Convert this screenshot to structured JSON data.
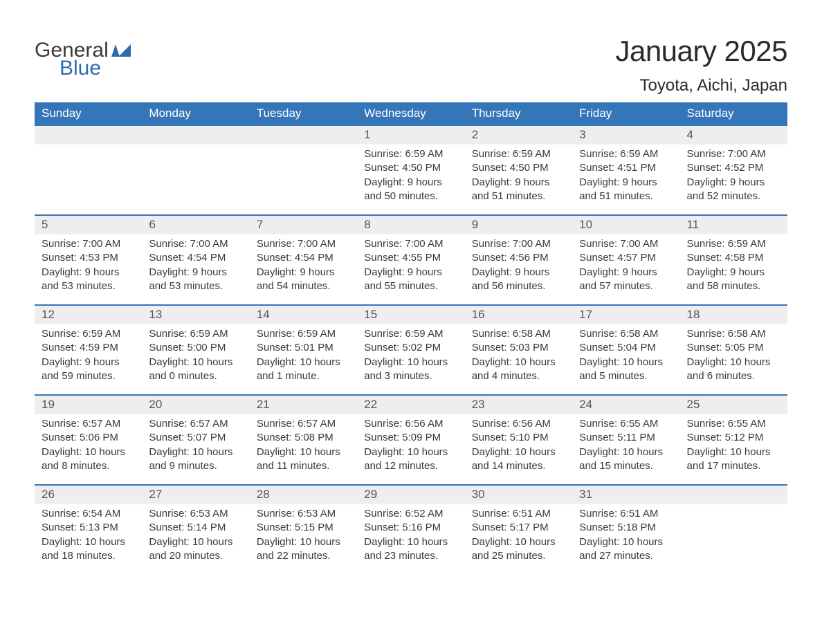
{
  "brand": {
    "name_part1": "General",
    "name_part2": "Blue",
    "logo_color": "#2b6cb0",
    "text_color": "#3a3a3a"
  },
  "title": "January 2025",
  "location": "Toyota, Aichi, Japan",
  "colors": {
    "header_bg": "#3576b9",
    "header_text": "#ffffff",
    "daynum_bg": "#eeeeee",
    "border": "#3576b9",
    "body_text": "#3a3a3a",
    "background": "#ffffff"
  },
  "weekdays": [
    "Sunday",
    "Monday",
    "Tuesday",
    "Wednesday",
    "Thursday",
    "Friday",
    "Saturday"
  ],
  "weeks": [
    [
      {
        "day": null
      },
      {
        "day": null
      },
      {
        "day": null
      },
      {
        "day": 1,
        "sunrise": "Sunrise: 6:59 AM",
        "sunset": "Sunset: 4:50 PM",
        "daylight1": "Daylight: 9 hours",
        "daylight2": "and 50 minutes."
      },
      {
        "day": 2,
        "sunrise": "Sunrise: 6:59 AM",
        "sunset": "Sunset: 4:50 PM",
        "daylight1": "Daylight: 9 hours",
        "daylight2": "and 51 minutes."
      },
      {
        "day": 3,
        "sunrise": "Sunrise: 6:59 AM",
        "sunset": "Sunset: 4:51 PM",
        "daylight1": "Daylight: 9 hours",
        "daylight2": "and 51 minutes."
      },
      {
        "day": 4,
        "sunrise": "Sunrise: 7:00 AM",
        "sunset": "Sunset: 4:52 PM",
        "daylight1": "Daylight: 9 hours",
        "daylight2": "and 52 minutes."
      }
    ],
    [
      {
        "day": 5,
        "sunrise": "Sunrise: 7:00 AM",
        "sunset": "Sunset: 4:53 PM",
        "daylight1": "Daylight: 9 hours",
        "daylight2": "and 53 minutes."
      },
      {
        "day": 6,
        "sunrise": "Sunrise: 7:00 AM",
        "sunset": "Sunset: 4:54 PM",
        "daylight1": "Daylight: 9 hours",
        "daylight2": "and 53 minutes."
      },
      {
        "day": 7,
        "sunrise": "Sunrise: 7:00 AM",
        "sunset": "Sunset: 4:54 PM",
        "daylight1": "Daylight: 9 hours",
        "daylight2": "and 54 minutes."
      },
      {
        "day": 8,
        "sunrise": "Sunrise: 7:00 AM",
        "sunset": "Sunset: 4:55 PM",
        "daylight1": "Daylight: 9 hours",
        "daylight2": "and 55 minutes."
      },
      {
        "day": 9,
        "sunrise": "Sunrise: 7:00 AM",
        "sunset": "Sunset: 4:56 PM",
        "daylight1": "Daylight: 9 hours",
        "daylight2": "and 56 minutes."
      },
      {
        "day": 10,
        "sunrise": "Sunrise: 7:00 AM",
        "sunset": "Sunset: 4:57 PM",
        "daylight1": "Daylight: 9 hours",
        "daylight2": "and 57 minutes."
      },
      {
        "day": 11,
        "sunrise": "Sunrise: 6:59 AM",
        "sunset": "Sunset: 4:58 PM",
        "daylight1": "Daylight: 9 hours",
        "daylight2": "and 58 minutes."
      }
    ],
    [
      {
        "day": 12,
        "sunrise": "Sunrise: 6:59 AM",
        "sunset": "Sunset: 4:59 PM",
        "daylight1": "Daylight: 9 hours",
        "daylight2": "and 59 minutes."
      },
      {
        "day": 13,
        "sunrise": "Sunrise: 6:59 AM",
        "sunset": "Sunset: 5:00 PM",
        "daylight1": "Daylight: 10 hours",
        "daylight2": "and 0 minutes."
      },
      {
        "day": 14,
        "sunrise": "Sunrise: 6:59 AM",
        "sunset": "Sunset: 5:01 PM",
        "daylight1": "Daylight: 10 hours",
        "daylight2": "and 1 minute."
      },
      {
        "day": 15,
        "sunrise": "Sunrise: 6:59 AM",
        "sunset": "Sunset: 5:02 PM",
        "daylight1": "Daylight: 10 hours",
        "daylight2": "and 3 minutes."
      },
      {
        "day": 16,
        "sunrise": "Sunrise: 6:58 AM",
        "sunset": "Sunset: 5:03 PM",
        "daylight1": "Daylight: 10 hours",
        "daylight2": "and 4 minutes."
      },
      {
        "day": 17,
        "sunrise": "Sunrise: 6:58 AM",
        "sunset": "Sunset: 5:04 PM",
        "daylight1": "Daylight: 10 hours",
        "daylight2": "and 5 minutes."
      },
      {
        "day": 18,
        "sunrise": "Sunrise: 6:58 AM",
        "sunset": "Sunset: 5:05 PM",
        "daylight1": "Daylight: 10 hours",
        "daylight2": "and 6 minutes."
      }
    ],
    [
      {
        "day": 19,
        "sunrise": "Sunrise: 6:57 AM",
        "sunset": "Sunset: 5:06 PM",
        "daylight1": "Daylight: 10 hours",
        "daylight2": "and 8 minutes."
      },
      {
        "day": 20,
        "sunrise": "Sunrise: 6:57 AM",
        "sunset": "Sunset: 5:07 PM",
        "daylight1": "Daylight: 10 hours",
        "daylight2": "and 9 minutes."
      },
      {
        "day": 21,
        "sunrise": "Sunrise: 6:57 AM",
        "sunset": "Sunset: 5:08 PM",
        "daylight1": "Daylight: 10 hours",
        "daylight2": "and 11 minutes."
      },
      {
        "day": 22,
        "sunrise": "Sunrise: 6:56 AM",
        "sunset": "Sunset: 5:09 PM",
        "daylight1": "Daylight: 10 hours",
        "daylight2": "and 12 minutes."
      },
      {
        "day": 23,
        "sunrise": "Sunrise: 6:56 AM",
        "sunset": "Sunset: 5:10 PM",
        "daylight1": "Daylight: 10 hours",
        "daylight2": "and 14 minutes."
      },
      {
        "day": 24,
        "sunrise": "Sunrise: 6:55 AM",
        "sunset": "Sunset: 5:11 PM",
        "daylight1": "Daylight: 10 hours",
        "daylight2": "and 15 minutes."
      },
      {
        "day": 25,
        "sunrise": "Sunrise: 6:55 AM",
        "sunset": "Sunset: 5:12 PM",
        "daylight1": "Daylight: 10 hours",
        "daylight2": "and 17 minutes."
      }
    ],
    [
      {
        "day": 26,
        "sunrise": "Sunrise: 6:54 AM",
        "sunset": "Sunset: 5:13 PM",
        "daylight1": "Daylight: 10 hours",
        "daylight2": "and 18 minutes."
      },
      {
        "day": 27,
        "sunrise": "Sunrise: 6:53 AM",
        "sunset": "Sunset: 5:14 PM",
        "daylight1": "Daylight: 10 hours",
        "daylight2": "and 20 minutes."
      },
      {
        "day": 28,
        "sunrise": "Sunrise: 6:53 AM",
        "sunset": "Sunset: 5:15 PM",
        "daylight1": "Daylight: 10 hours",
        "daylight2": "and 22 minutes."
      },
      {
        "day": 29,
        "sunrise": "Sunrise: 6:52 AM",
        "sunset": "Sunset: 5:16 PM",
        "daylight1": "Daylight: 10 hours",
        "daylight2": "and 23 minutes."
      },
      {
        "day": 30,
        "sunrise": "Sunrise: 6:51 AM",
        "sunset": "Sunset: 5:17 PM",
        "daylight1": "Daylight: 10 hours",
        "daylight2": "and 25 minutes."
      },
      {
        "day": 31,
        "sunrise": "Sunrise: 6:51 AM",
        "sunset": "Sunset: 5:18 PM",
        "daylight1": "Daylight: 10 hours",
        "daylight2": "and 27 minutes."
      },
      {
        "day": null
      }
    ]
  ]
}
